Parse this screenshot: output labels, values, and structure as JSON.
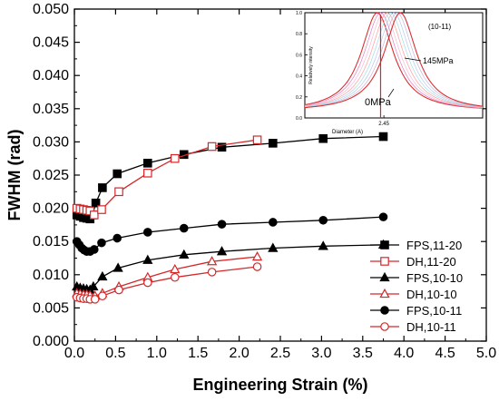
{
  "chart_data": [
    {
      "type": "line",
      "xlabel": "Engineering Strain (%)",
      "ylabel": "FWHM (rad)",
      "xlim": [
        0.0,
        5.0
      ],
      "ylim": [
        0.0,
        0.05
      ],
      "x_ticks": [
        "0.0",
        "0.5",
        "1.0",
        "1.5",
        "2.0",
        "2.5",
        "3.0",
        "3.5",
        "4.0",
        "4.5",
        "5.0"
      ],
      "y_ticks": [
        "0.000",
        "0.005",
        "0.010",
        "0.015",
        "0.020",
        "0.025",
        "0.030",
        "0.035",
        "0.040",
        "0.045",
        "0.050"
      ],
      "legend_position": "bottom-right",
      "series": [
        {
          "name": "FPS,11-20",
          "color": "#000000",
          "marker": "square",
          "filled": true,
          "points": [
            [
              0.03,
              0.019
            ],
            [
              0.07,
              0.0188
            ],
            [
              0.11,
              0.0186
            ],
            [
              0.15,
              0.0185
            ],
            [
              0.19,
              0.0184
            ],
            [
              0.22,
              0.019
            ],
            [
              0.26,
              0.0208
            ],
            [
              0.34,
              0.0231
            ],
            [
              0.52,
              0.0252
            ],
            [
              0.89,
              0.0268
            ],
            [
              1.33,
              0.0281
            ],
            [
              1.79,
              0.0292
            ],
            [
              2.41,
              0.0298
            ],
            [
              3.02,
              0.0305
            ],
            [
              3.75,
              0.0308
            ]
          ]
        },
        {
          "name": "DH,11-20",
          "color": "#d62728",
          "marker": "square",
          "filled": false,
          "points": [
            [
              0.03,
              0.02
            ],
            [
              0.07,
              0.0199
            ],
            [
              0.11,
              0.0198
            ],
            [
              0.15,
              0.0197
            ],
            [
              0.19,
              0.0196
            ],
            [
              0.24,
              0.019
            ],
            [
              0.33,
              0.0198
            ],
            [
              0.54,
              0.0225
            ],
            [
              0.89,
              0.0253
            ],
            [
              1.22,
              0.0275
            ],
            [
              1.67,
              0.0293
            ],
            [
              2.22,
              0.0303
            ]
          ]
        },
        {
          "name": "FPS,10-10",
          "color": "#000000",
          "marker": "triangle",
          "filled": true,
          "points": [
            [
              0.03,
              0.0082
            ],
            [
              0.07,
              0.008
            ],
            [
              0.11,
              0.0079
            ],
            [
              0.15,
              0.0078
            ],
            [
              0.19,
              0.0077
            ],
            [
              0.23,
              0.0082
            ],
            [
              0.34,
              0.0097
            ],
            [
              0.53,
              0.011
            ],
            [
              0.89,
              0.0122
            ],
            [
              1.33,
              0.013
            ],
            [
              1.79,
              0.0135
            ],
            [
              2.41,
              0.014
            ],
            [
              3.02,
              0.0143
            ],
            [
              3.75,
              0.0145
            ]
          ]
        },
        {
          "name": "DH,10-10",
          "color": "#d62728",
          "marker": "triangle",
          "filled": false,
          "points": [
            [
              0.03,
              0.0072
            ],
            [
              0.07,
              0.0071
            ],
            [
              0.11,
              0.007
            ],
            [
              0.15,
              0.007
            ],
            [
              0.19,
              0.0069
            ],
            [
              0.25,
              0.0068
            ],
            [
              0.34,
              0.0072
            ],
            [
              0.54,
              0.0082
            ],
            [
              0.89,
              0.0096
            ],
            [
              1.22,
              0.0108
            ],
            [
              1.67,
              0.012
            ],
            [
              2.22,
              0.0127
            ]
          ]
        },
        {
          "name": "FPS,10-11",
          "color": "#000000",
          "marker": "circle",
          "filled": true,
          "points": [
            [
              0.03,
              0.015
            ],
            [
              0.06,
              0.0145
            ],
            [
              0.09,
              0.014
            ],
            [
              0.12,
              0.0137
            ],
            [
              0.15,
              0.0135
            ],
            [
              0.19,
              0.0135
            ],
            [
              0.24,
              0.0138
            ],
            [
              0.33,
              0.0148
            ],
            [
              0.52,
              0.0155
            ],
            [
              0.89,
              0.0164
            ],
            [
              1.33,
              0.017
            ],
            [
              1.79,
              0.0176
            ],
            [
              2.41,
              0.0179
            ],
            [
              3.02,
              0.0182
            ],
            [
              3.75,
              0.0187
            ]
          ]
        },
        {
          "name": "DH,10-11",
          "color": "#d62728",
          "marker": "circle",
          "filled": false,
          "points": [
            [
              0.03,
              0.0066
            ],
            [
              0.07,
              0.0065
            ],
            [
              0.11,
              0.0064
            ],
            [
              0.15,
              0.0064
            ],
            [
              0.19,
              0.0063
            ],
            [
              0.25,
              0.0063
            ],
            [
              0.34,
              0.0068
            ],
            [
              0.54,
              0.0077
            ],
            [
              0.89,
              0.0088
            ],
            [
              1.22,
              0.0096
            ],
            [
              1.67,
              0.0104
            ],
            [
              2.22,
              0.0112
            ]
          ]
        }
      ]
    },
    {
      "type": "line",
      "title": "(10-11)",
      "xlabel": "Diameter (A)",
      "ylabel": "Relatively intensity",
      "ylim": [
        0.0,
        1.0
      ],
      "y_ticks": [
        "0.0",
        "0.2",
        "0.4",
        "0.6",
        "0.8",
        "1.0"
      ],
      "x_ticks": [
        "2.45"
      ],
      "annotations": [
        "145MPa",
        "0MPa"
      ],
      "series": [
        {
          "color": "#d62728",
          "center": 2.44,
          "values": "0MPa profile"
        },
        {
          "color": "#e377c2",
          "center": 2.445
        },
        {
          "color": "#f7b6d2",
          "center": 2.45
        },
        {
          "color": "#ff9896",
          "center": 2.455
        },
        {
          "color": "#9edae5",
          "center": 2.46
        },
        {
          "color": "#aec7e8",
          "center": 2.465
        },
        {
          "color": "#c5b0d5",
          "center": 2.47
        },
        {
          "color": "#d62728",
          "center": 2.475,
          "values": "145MPa profile"
        }
      ]
    }
  ]
}
